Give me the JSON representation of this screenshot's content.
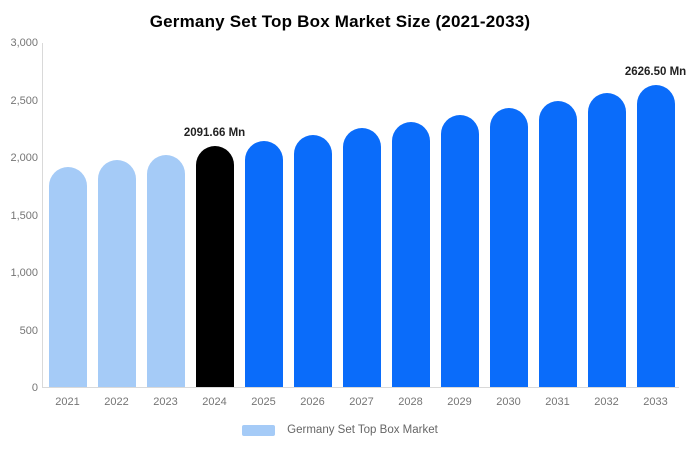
{
  "title": "Germany Set Top Box Market Size (2021-2033)",
  "legend": {
    "items": [
      {
        "label": "Germany Set Top Box Market",
        "color": "#a5cbf7"
      }
    ]
  },
  "colors": {
    "historical": "#a5cbf7",
    "highlight": "#000000",
    "forecast": "#0a6cfa",
    "axis_line": "#d9d9d9",
    "axis_text": "#757575",
    "value_label_text": "#222222",
    "legend_text": "#666666",
    "title_text": "#000000"
  },
  "chart_data": {
    "type": "bar",
    "title": "Germany Set Top Box Market Size (2021-2033)",
    "xlabel": "",
    "ylabel": "",
    "unit": "Mn",
    "categories": [
      "2021",
      "2022",
      "2023",
      "2024",
      "2025",
      "2026",
      "2027",
      "2028",
      "2029",
      "2030",
      "2031",
      "2032",
      "2033"
    ],
    "values": [
      1910,
      1975,
      2020,
      2091.66,
      2135,
      2192,
      2248,
      2306,
      2365,
      2426,
      2489,
      2553,
      2626.5
    ],
    "value_labels": [
      "",
      "",
      "",
      "2091.66 Mn",
      "",
      "",
      "",
      "",
      "",
      "",
      "",
      "",
      "2626.50 Mn"
    ],
    "bar_styles": [
      "historical",
      "historical",
      "historical",
      "highlight",
      "forecast",
      "forecast",
      "forecast",
      "forecast",
      "forecast",
      "forecast",
      "forecast",
      "forecast",
      "forecast"
    ],
    "ylim": [
      0,
      3000
    ],
    "yticks": [
      0,
      500,
      1000,
      1500,
      2000,
      2500,
      3000
    ],
    "grid": false,
    "legend_position": "bottom",
    "legend_entries": [
      "Germany Set Top Box Market"
    ]
  }
}
